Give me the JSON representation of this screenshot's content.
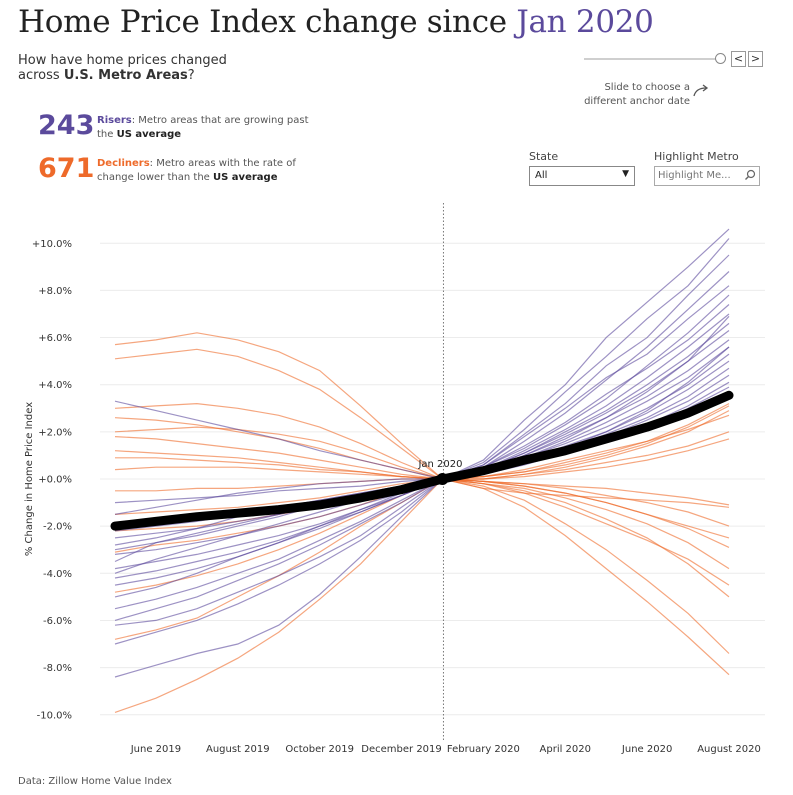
{
  "header": {
    "title_prefix": "Home Price Index change since",
    "title_highlight": "Jan 2020",
    "subtitle_line1": "How have home prices changed",
    "subtitle_line2_prefix": "across",
    "subtitle_line2_bold": "U.S. Metro Areas",
    "subtitle_line2_suffix": "?"
  },
  "slider": {
    "prev": "<",
    "next": ">",
    "hint": "Slide to choose a different anchor date"
  },
  "stats": {
    "risers": {
      "count": "243",
      "label": "Risers",
      "desc": ": Metro areas that are growing past the",
      "bold": "US average",
      "color": "#5b4a9c"
    },
    "decliners": {
      "count": "671",
      "label": "Decliners",
      "desc": ": Metro areas with the rate of change lower than the",
      "bold": "US average",
      "color": "#ee6a2a"
    }
  },
  "filters": {
    "state_label": "State",
    "state_value": "All",
    "metro_label": "Highlight Metro",
    "metro_placeholder": "Highlight Me..."
  },
  "footer": {
    "source": "Data: Zillow Home Value Index"
  },
  "colors": {
    "riser": "#5b4a9c",
    "decliner": "#ee6a2a",
    "us_average": "#000000",
    "title_accent": "#5b4a9c"
  },
  "icons": {
    "search": "search-icon",
    "arrow": "curved-arrow-icon",
    "dropdown": "caret-down-icon"
  },
  "chart_data": {
    "type": "line",
    "x_labels": [
      "June 2019",
      "August 2019",
      "October 2019",
      "December 2019",
      "February 2020",
      "April 2020",
      "June 2020",
      "August 2020"
    ],
    "x": [
      "May 2019",
      "Jun 2019",
      "Jul 2019",
      "Aug 2019",
      "Sep 2019",
      "Oct 2019",
      "Nov 2019",
      "Dec 2019",
      "Jan 2020",
      "Feb 2020",
      "Mar 2020",
      "Apr 2020",
      "May 2020",
      "Jun 2020",
      "Jul 2020",
      "Aug 2020"
    ],
    "ylabel": "% Change in Home Price Index",
    "y_ticks": [
      10,
      8,
      6,
      4,
      2,
      0,
      -2,
      -4,
      -6,
      -8,
      -10
    ],
    "y_tick_labels": [
      "+10.0%",
      "+8.0%",
      "+6.0%",
      "+4.0%",
      "+2.0%",
      "+0.0%",
      "-2.0%",
      "-4.0%",
      "-6.0%",
      "-8.0%",
      "-10.0%"
    ],
    "ylim": [
      -11.0,
      11.5
    ],
    "anchor_label": "Jan 2020",
    "anchor_index": 8,
    "us_average": [
      -2.0,
      -1.8,
      -1.6,
      -1.45,
      -1.3,
      -1.1,
      -0.8,
      -0.45,
      0.0,
      0.35,
      0.8,
      1.2,
      1.7,
      2.2,
      2.8,
      3.55
    ],
    "grid": true,
    "series": [
      {
        "group": "riser",
        "values": [
          -3.5,
          -2.7,
          -2.3,
          -1.9,
          -1.5,
          -1.1,
          -0.7,
          -0.3,
          0.0,
          0.8,
          2.5,
          4.0,
          6.0,
          7.5,
          9.0,
          10.6
        ]
      },
      {
        "group": "riser",
        "values": [
          -2.8,
          -2.5,
          -2.1,
          -1.6,
          -1.2,
          -0.9,
          -0.6,
          -0.3,
          0.0,
          0.7,
          2.1,
          3.7,
          5.2,
          6.8,
          8.2,
          10.2
        ]
      },
      {
        "group": "riser",
        "values": [
          -4.0,
          -3.4,
          -2.9,
          -2.4,
          -1.9,
          -1.4,
          -0.9,
          -0.4,
          0.0,
          0.6,
          1.9,
          3.2,
          4.8,
          6.0,
          7.8,
          9.5
        ]
      },
      {
        "group": "riser",
        "values": [
          -1.5,
          -1.2,
          -0.9,
          -0.6,
          -0.4,
          -0.2,
          -0.1,
          0.0,
          0.0,
          0.5,
          1.6,
          2.8,
          4.2,
          5.6,
          7.2,
          8.8
        ]
      },
      {
        "group": "riser",
        "values": [
          -5.0,
          -4.6,
          -4.0,
          -3.3,
          -2.7,
          -2.0,
          -1.3,
          -0.6,
          0.0,
          0.6,
          1.8,
          3.0,
          4.3,
          5.3,
          6.8,
          8.2
        ]
      },
      {
        "group": "riser",
        "values": [
          -3.0,
          -2.7,
          -2.4,
          -2.0,
          -1.6,
          -1.1,
          -0.7,
          -0.3,
          0.0,
          0.5,
          1.3,
          2.3,
          3.4,
          4.8,
          6.2,
          7.8
        ]
      },
      {
        "group": "riser",
        "values": [
          -6.2,
          -6.0,
          -5.5,
          -4.8,
          -4.1,
          -3.3,
          -2.4,
          -1.2,
          0.0,
          0.5,
          1.4,
          2.4,
          3.6,
          4.7,
          5.9,
          7.4
        ]
      },
      {
        "group": "riser",
        "values": [
          -7.0,
          -6.5,
          -6.0,
          -5.3,
          -4.5,
          -3.6,
          -2.6,
          -1.4,
          0.0,
          0.4,
          1.2,
          2.1,
          3.1,
          4.3,
          5.6,
          7.0
        ]
      },
      {
        "group": "riser",
        "values": [
          -2.2,
          -2.0,
          -1.8,
          -1.5,
          -1.2,
          -0.9,
          -0.6,
          -0.3,
          0.0,
          0.4,
          1.1,
          2.0,
          2.9,
          4.0,
          5.2,
          6.6
        ]
      },
      {
        "group": "riser",
        "values": [
          -4.5,
          -4.2,
          -3.8,
          -3.3,
          -2.7,
          -2.1,
          -1.4,
          -0.7,
          0.0,
          0.4,
          1.1,
          1.9,
          2.8,
          3.8,
          5.0,
          6.3
        ]
      },
      {
        "group": "riser",
        "values": [
          3.3,
          2.9,
          2.5,
          2.1,
          1.7,
          1.2,
          0.8,
          0.4,
          0.0,
          0.3,
          1.0,
          1.8,
          2.6,
          3.5,
          4.6,
          5.9
        ]
      },
      {
        "group": "riser",
        "values": [
          -8.4,
          -7.9,
          -7.4,
          -7.0,
          -6.2,
          -4.9,
          -3.3,
          -1.6,
          0.0,
          0.3,
          0.9,
          1.6,
          2.4,
          3.3,
          4.3,
          5.6
        ]
      },
      {
        "group": "riser",
        "values": [
          -3.8,
          -3.5,
          -3.2,
          -2.8,
          -2.4,
          -1.9,
          -1.3,
          -0.7,
          0.0,
          0.3,
          0.9,
          1.5,
          2.2,
          3.0,
          4.0,
          5.3
        ]
      },
      {
        "group": "riser",
        "values": [
          -2.5,
          -2.3,
          -2.1,
          -1.8,
          -1.5,
          -1.1,
          -0.7,
          -0.3,
          0.0,
          0.3,
          0.8,
          1.4,
          2.0,
          2.8,
          3.8,
          5.0
        ]
      },
      {
        "group": "riser",
        "values": [
          -5.5,
          -5.1,
          -4.6,
          -4.0,
          -3.4,
          -2.6,
          -1.8,
          -0.9,
          0.0,
          0.3,
          0.8,
          1.3,
          1.9,
          2.6,
          3.5,
          4.7
        ]
      },
      {
        "group": "riser",
        "values": [
          -1.0,
          -0.9,
          -0.8,
          -0.7,
          -0.5,
          -0.4,
          -0.3,
          -0.1,
          0.0,
          0.3,
          0.7,
          1.2,
          1.8,
          2.5,
          3.3,
          4.4
        ]
      },
      {
        "group": "riser",
        "values": [
          -3.2,
          -3.0,
          -2.7,
          -2.4,
          -2.0,
          -1.6,
          -1.1,
          -0.6,
          0.0,
          0.3,
          0.7,
          1.2,
          1.7,
          2.3,
          3.1,
          4.1
        ]
      },
      {
        "group": "riser",
        "values": [
          -6.0,
          -5.5,
          -5.0,
          -4.3,
          -3.6,
          -2.8,
          -1.9,
          -1.0,
          0.0,
          0.2,
          0.6,
          1.1,
          1.6,
          2.2,
          3.0,
          3.9
        ]
      },
      {
        "group": "riser",
        "values": [
          -4.2,
          -3.9,
          -3.5,
          -3.1,
          -2.6,
          -2.0,
          -1.4,
          -0.7,
          0.0,
          0.2,
          0.7,
          1.3,
          2.0,
          2.9,
          4.1,
          5.6
        ]
      },
      {
        "group": "riser",
        "values": [
          -2.0,
          -1.9,
          -1.7,
          -1.5,
          -1.3,
          -1.0,
          -0.7,
          -0.3,
          0.0,
          0.4,
          1.0,
          1.7,
          2.6,
          3.7,
          5.0,
          6.9
        ]
      },
      {
        "group": "decliner",
        "values": [
          5.7,
          5.9,
          6.2,
          5.9,
          5.4,
          4.6,
          3.1,
          1.5,
          0.0,
          -0.4,
          -0.6,
          -0.7,
          -0.8,
          -0.9,
          -1.0,
          -1.2
        ]
      },
      {
        "group": "decliner",
        "values": [
          5.1,
          5.3,
          5.5,
          5.2,
          4.6,
          3.8,
          2.6,
          1.3,
          0.0,
          0.1,
          0.4,
          0.8,
          1.2,
          1.6,
          2.1,
          2.7
        ]
      },
      {
        "group": "decliner",
        "values": [
          3.0,
          3.1,
          3.2,
          3.0,
          2.7,
          2.2,
          1.5,
          0.7,
          0.0,
          -0.3,
          -0.9,
          -1.9,
          -3.0,
          -4.3,
          -5.7,
          -7.4
        ]
      },
      {
        "group": "decliner",
        "values": [
          2.0,
          2.1,
          2.2,
          2.1,
          1.9,
          1.6,
          1.1,
          0.5,
          0.0,
          -0.4,
          -1.2,
          -2.4,
          -3.8,
          -5.2,
          -6.7,
          -8.3
        ]
      },
      {
        "group": "decliner",
        "values": [
          -9.9,
          -9.3,
          -8.5,
          -7.6,
          -6.5,
          -5.1,
          -3.6,
          -1.8,
          0.0,
          -0.2,
          -0.5,
          -1.0,
          -1.7,
          -2.5,
          -3.6,
          -5.0
        ]
      },
      {
        "group": "decliner",
        "values": [
          -6.8,
          -6.4,
          -5.9,
          -5.0,
          -4.1,
          -3.1,
          -2.0,
          -1.0,
          0.0,
          -0.2,
          -0.4,
          -0.8,
          -1.3,
          -1.9,
          -2.7,
          -3.8
        ]
      },
      {
        "group": "decliner",
        "values": [
          1.2,
          1.1,
          1.0,
          0.9,
          0.7,
          0.5,
          0.3,
          0.1,
          0.0,
          -0.2,
          -0.6,
          -1.2,
          -1.9,
          -2.6,
          -3.4,
          -4.5
        ]
      },
      {
        "group": "decliner",
        "values": [
          2.6,
          2.5,
          2.3,
          2.0,
          1.7,
          1.3,
          0.8,
          0.4,
          0.0,
          -0.1,
          -0.3,
          -0.6,
          -1.0,
          -1.5,
          -2.1,
          -2.9
        ]
      },
      {
        "group": "decliner",
        "values": [
          0.4,
          0.5,
          0.5,
          0.5,
          0.4,
          0.3,
          0.2,
          0.1,
          0.0,
          0.0,
          0.2,
          0.5,
          0.9,
          1.4,
          2.0,
          2.9
        ]
      },
      {
        "group": "decliner",
        "values": [
          -3.1,
          -2.8,
          -2.6,
          -2.3,
          -2.0,
          -1.6,
          -1.1,
          -0.5,
          0.0,
          0.0,
          0.1,
          0.3,
          0.5,
          0.8,
          1.2,
          1.7
        ]
      },
      {
        "group": "decliner",
        "values": [
          -1.5,
          -1.4,
          -1.3,
          -1.2,
          -1.0,
          -0.8,
          -0.5,
          -0.2,
          0.0,
          -0.1,
          -0.2,
          -0.3,
          -0.4,
          -0.6,
          -0.8,
          -1.1
        ]
      },
      {
        "group": "decliner",
        "values": [
          1.8,
          1.7,
          1.5,
          1.3,
          1.1,
          0.8,
          0.5,
          0.2,
          0.0,
          -0.1,
          -0.2,
          -0.4,
          -0.7,
          -1.0,
          -1.4,
          -2.0
        ]
      },
      {
        "group": "decliner",
        "values": [
          -0.5,
          -0.5,
          -0.4,
          -0.4,
          -0.3,
          -0.2,
          -0.1,
          0.0,
          0.0,
          0.1,
          0.3,
          0.6,
          1.0,
          1.5,
          2.2,
          3.1
        ]
      },
      {
        "group": "decliner",
        "values": [
          -4.8,
          -4.5,
          -4.1,
          -3.6,
          -3.0,
          -2.3,
          -1.5,
          -0.7,
          0.0,
          0.0,
          0.2,
          0.4,
          0.7,
          1.0,
          1.4,
          2.0
        ]
      },
      {
        "group": "decliner",
        "values": [
          0.9,
          0.9,
          0.8,
          0.7,
          0.6,
          0.4,
          0.3,
          0.1,
          0.0,
          -0.1,
          -0.3,
          -0.6,
          -1.0,
          -1.5,
          -2.0,
          -2.5
        ]
      },
      {
        "group": "decliner",
        "values": [
          -2.2,
          -2.1,
          -2.0,
          -1.8,
          -1.5,
          -1.2,
          -0.8,
          -0.4,
          0.0,
          0.1,
          0.3,
          0.7,
          1.1,
          1.6,
          2.3,
          3.2
        ]
      }
    ]
  }
}
